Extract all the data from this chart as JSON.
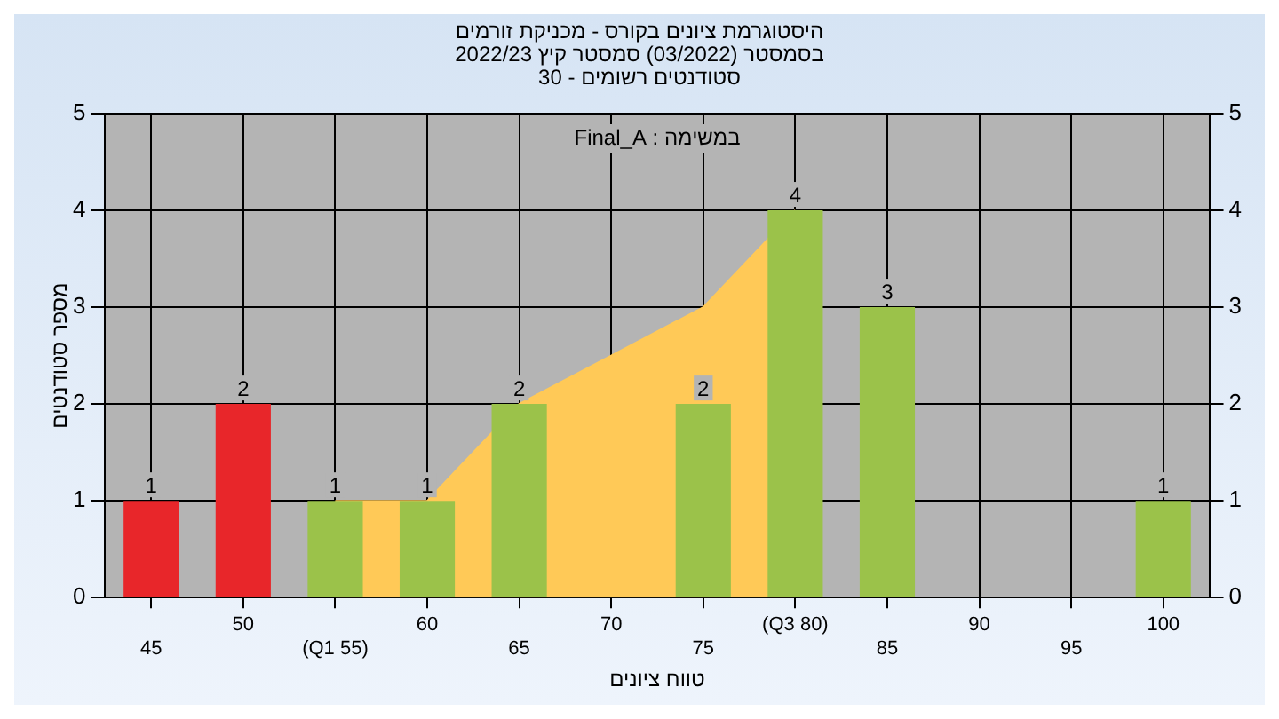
{
  "chart_data": {
    "type": "bar",
    "title": "היסטוגרמת ציונים בקורס - מכניקת זורמים",
    "subtitle": "בסמסטר (03/2022) סמסטר קיץ 2022/23\nסטודנטים רשומים - 30",
    "xlabel": "טווח ציונים",
    "ylabel": "מספר סטודנטים",
    "annotations": [
      "במשימה : Final_A"
    ],
    "categories": [
      "45",
      "50",
      "(Q1 55)",
      "60",
      "65",
      "70",
      "75",
      "(Q3 80)",
      "85",
      "90",
      "95",
      "100"
    ],
    "series": [
      {
        "type": "area",
        "color": "#ffc957",
        "values": [
          null,
          null,
          1,
          1,
          2,
          2.5,
          3,
          4,
          null,
          null,
          null,
          null
        ]
      },
      {
        "colors": [
          "#e8262a",
          "#e8262a",
          "#9bc24a",
          "#9bc24a",
          "#9bc24a",
          "#9bc24a",
          "#9bc24a",
          "#9bc24a",
          "#9bc24a",
          "#9bc24a",
          "#9bc24a",
          "#9bc24a"
        ],
        "values": [
          1,
          2,
          1,
          1,
          2,
          0,
          2,
          4,
          3,
          0,
          0,
          1
        ],
        "value_labels": [
          "1",
          "2",
          "1",
          "1",
          "2",
          null,
          "2",
          "4",
          "3",
          null,
          null,
          "1"
        ]
      }
    ],
    "ylim": [
      0,
      5
    ],
    "yticks": [
      0,
      1,
      2,
      3,
      4,
      5
    ],
    "y2lim": [
      0,
      5
    ],
    "y2ticks": [
      0,
      1,
      2,
      3,
      4,
      5
    ],
    "grid": true,
    "legend": false
  }
}
